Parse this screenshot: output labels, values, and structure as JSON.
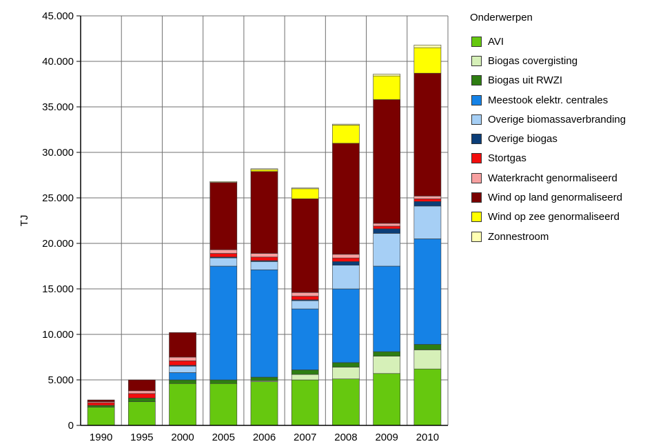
{
  "chart_data": {
    "type": "bar",
    "stacked": true,
    "ylabel": "TJ",
    "xlabel": "",
    "ylim": [
      0,
      45000
    ],
    "yticks": [
      "0",
      "5.000",
      "10.000",
      "15.000",
      "20.000",
      "25.000",
      "30.000",
      "35.000",
      "40.000",
      "45.000"
    ],
    "grid": true,
    "legend_title": "Onderwerpen",
    "legend_position": "right",
    "categories": [
      "1990",
      "1995",
      "2000",
      "2005",
      "2006",
      "2007",
      "2008",
      "2009",
      "2010"
    ],
    "series": [
      {
        "name": "AVI",
        "color": "#66c80f",
        "values": [
          2000,
          2600,
          4600,
          4600,
          4800,
          5000,
          5100,
          5700,
          6200
        ]
      },
      {
        "name": "Biogas covergisting",
        "color": "#d6f0b8",
        "values": [
          0,
          0,
          0,
          0,
          100,
          600,
          1300,
          1900,
          2100
        ]
      },
      {
        "name": "Biogas uit RWZI",
        "color": "#2e7d12",
        "values": [
          200,
          400,
          400,
          400,
          400,
          500,
          500,
          500,
          600
        ]
      },
      {
        "name": "Meestook elektr. centrales",
        "color": "#1582e6",
        "values": [
          0,
          0,
          800,
          12500,
          11800,
          6700,
          8100,
          9400,
          11600
        ]
      },
      {
        "name": "Overige biomassaverbranding",
        "color": "#a6cff5",
        "values": [
          0,
          0,
          700,
          900,
          900,
          900,
          2600,
          3600,
          3600
        ]
      },
      {
        "name": "Overige biogas",
        "color": "#0b3e78",
        "values": [
          0,
          0,
          100,
          100,
          100,
          100,
          400,
          500,
          500
        ]
      },
      {
        "name": "Stortgas",
        "color": "#f20d0d",
        "values": [
          300,
          500,
          500,
          400,
          400,
          400,
          400,
          300,
          300
        ]
      },
      {
        "name": "Waterkracht genormaliseerd",
        "color": "#f7a0a0",
        "values": [
          100,
          300,
          400,
          400,
          400,
          400,
          400,
          300,
          300
        ]
      },
      {
        "name": "Wind op land genormaliseerd",
        "color": "#7a0000",
        "values": [
          200,
          1200,
          2700,
          7400,
          9000,
          10300,
          12200,
          13600,
          13500
        ]
      },
      {
        "name": "Wind op zee genormaliseerd",
        "color": "#ffff00",
        "values": [
          0,
          0,
          0,
          0,
          200,
          1100,
          2000,
          2600,
          2800
        ]
      },
      {
        "name": "Zonnestroom",
        "color": "#ffffb3",
        "values": [
          0,
          0,
          0,
          100,
          100,
          100,
          100,
          200,
          300
        ]
      }
    ]
  }
}
